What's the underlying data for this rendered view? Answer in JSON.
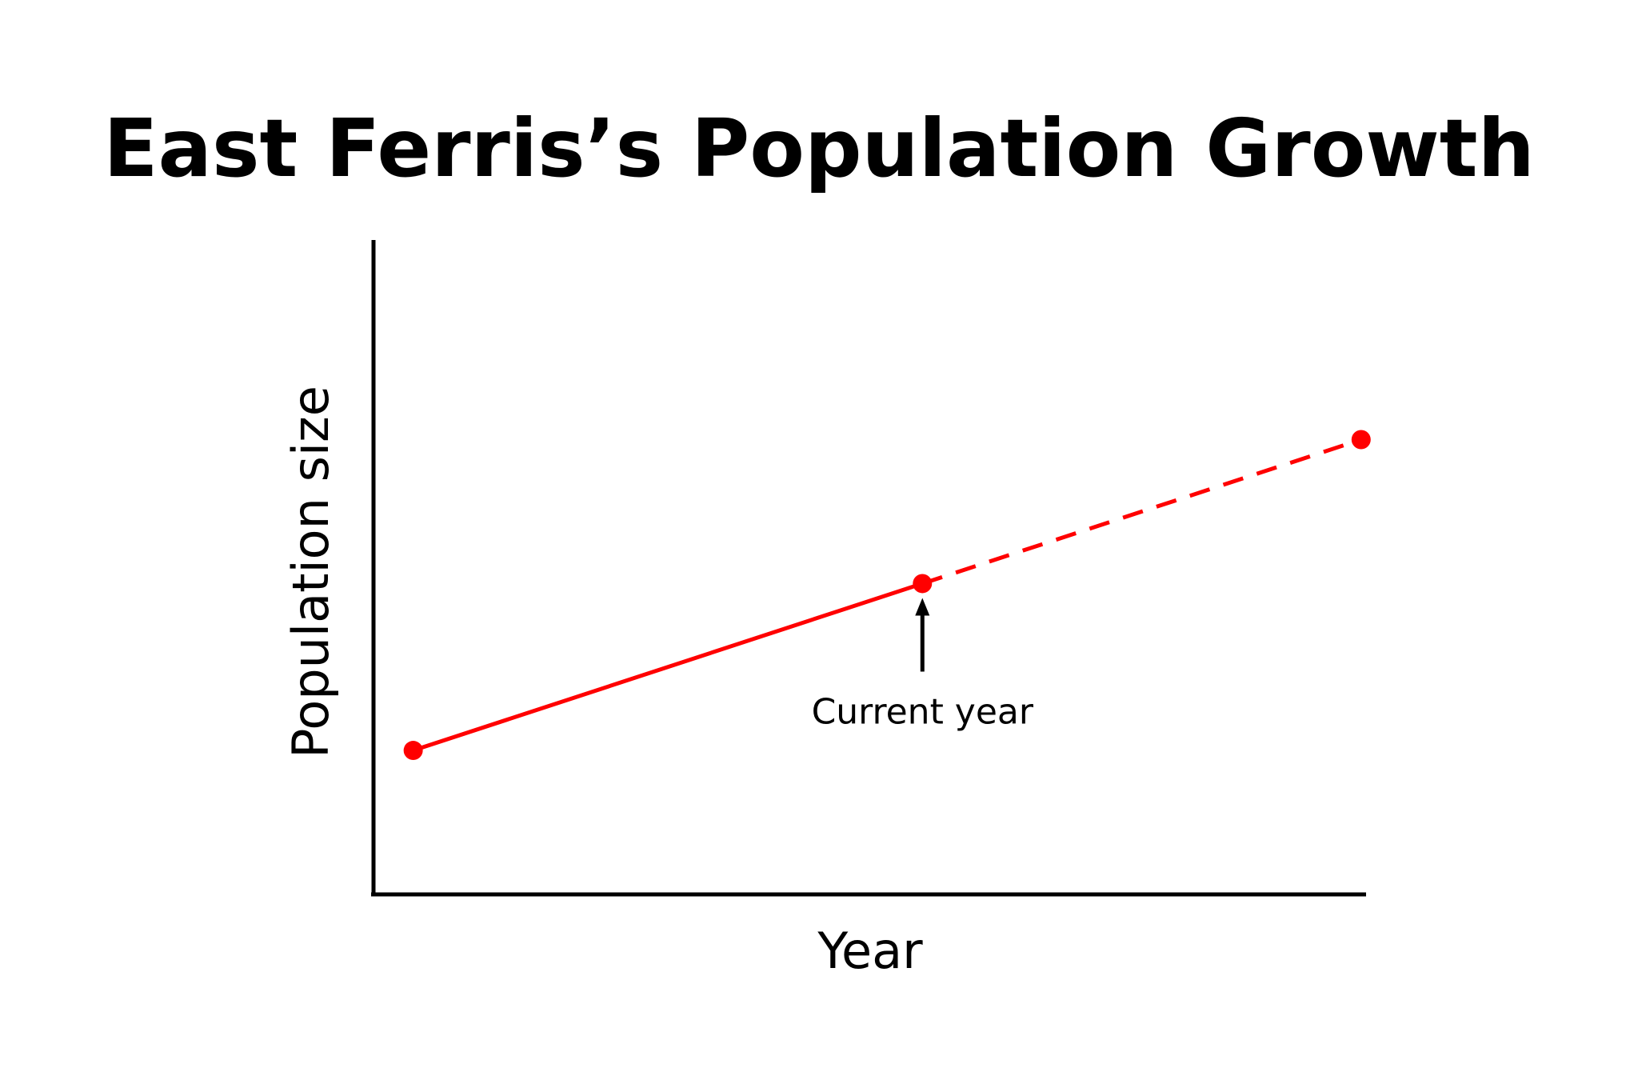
{
  "chart_data": {
    "type": "line",
    "title": "East Ferris’s Population Growth",
    "xlabel": "Year",
    "ylabel": "Population size",
    "grid": false,
    "legend": "none",
    "xlim": [
      0,
      100
    ],
    "ylim": [
      0,
      100
    ],
    "series": [
      {
        "style": "solid",
        "color": "#ff0000",
        "x": [
          4,
          55.3
        ],
        "y": [
          22,
          47.5
        ]
      },
      {
        "style": "dashed",
        "color": "#ff0000",
        "x": [
          55.3,
          99.5
        ],
        "y": [
          47.5,
          69.5
        ]
      }
    ],
    "annotations": [
      {
        "text": "Current year",
        "x": 55.3,
        "y": 47.5,
        "arrow": true
      }
    ]
  }
}
